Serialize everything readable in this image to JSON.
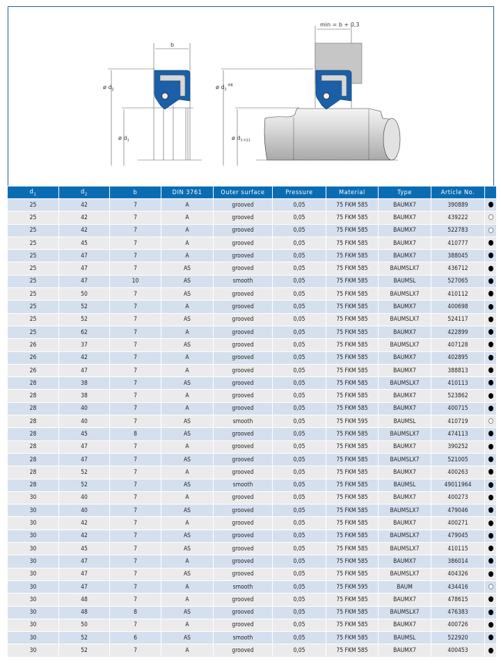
{
  "drawing": {
    "label_b": "b",
    "label_d2": "ø d",
    "label_d2_sub": "2",
    "label_d1": "ø d",
    "label_d1_sub": "1",
    "label_d2_right": "ø d",
    "label_d2_right_sub": "2",
    "label_d2_tol": "H8",
    "label_d1_right": "ø d",
    "label_d1_right_sub": "1 h11",
    "label_min": "min = b + 0,3",
    "seal_color": "#1a5fa8"
  },
  "table": {
    "headers": [
      "d",
      "d",
      "b",
      "DIN 3761",
      "Outer surface",
      "Pressure",
      "Material",
      "Type",
      "Article No.",
      ""
    ],
    "header_subs": [
      "1",
      "2"
    ],
    "header_color": "#0a6db3",
    "row_colors": [
      "#d5e0ee",
      "#ebebeb"
    ],
    "rows": [
      [
        "25",
        "42",
        "7",
        "A",
        "grooved",
        "0,05",
        "75 FKM 585",
        "BAUMX7",
        "390889",
        "filled"
      ],
      [
        "25",
        "42",
        "7",
        "A",
        "grooved",
        "0,05",
        "75 FKM 585",
        "BAUMX7",
        "439222",
        "open"
      ],
      [
        "25",
        "42",
        "7",
        "A",
        "grooved",
        "0,05",
        "75 FKM 585",
        "BAUMX7",
        "522783",
        "open"
      ],
      [
        "25",
        "45",
        "7",
        "A",
        "grooved",
        "0,05",
        "75 FKM 585",
        "BAUMX7",
        "410777",
        "filled"
      ],
      [
        "25",
        "47",
        "7",
        "A",
        "grooved",
        "0,05",
        "75 FKM 585",
        "BAUMX7",
        "388045",
        "filled"
      ],
      [
        "25",
        "47",
        "7",
        "AS",
        "grooved",
        "0,05",
        "75 FKM 585",
        "BAUMSLX7",
        "436712",
        "filled"
      ],
      [
        "25",
        "47",
        "10",
        "AS",
        "smooth",
        "0,05",
        "75 FKM 585",
        "BAUMSL",
        "527065",
        "filled"
      ],
      [
        "25",
        "50",
        "7",
        "AS",
        "grooved",
        "0,05",
        "75 FKM 585",
        "BAUMSLX7",
        "410112",
        "filled"
      ],
      [
        "25",
        "52",
        "7",
        "A",
        "grooved",
        "0,05",
        "75 FKM 585",
        "BAUMX7",
        "400698",
        "filled"
      ],
      [
        "25",
        "52",
        "7",
        "AS",
        "grooved",
        "0,05",
        "75 FKM 585",
        "BAUMSLX7",
        "524117",
        "filled"
      ],
      [
        "25",
        "62",
        "7",
        "A",
        "grooved",
        "0,05",
        "75 FKM 585",
        "BAUMX7",
        "422899",
        "filled"
      ],
      [
        "26",
        "37",
        "7",
        "AS",
        "grooved",
        "0,05",
        "75 FKM 585",
        "BAUMSLX7",
        "407128",
        "filled"
      ],
      [
        "26",
        "42",
        "7",
        "A",
        "grooved",
        "0,05",
        "75 FKM 585",
        "BAUMX7",
        "402895",
        "filled"
      ],
      [
        "26",
        "47",
        "7",
        "A",
        "grooved",
        "0,05",
        "75 FKM 585",
        "BAUMX7",
        "388813",
        "filled"
      ],
      [
        "28",
        "38",
        "7",
        "AS",
        "grooved",
        "0,05",
        "75 FKM 585",
        "BAUMSLX7",
        "410113",
        "filled"
      ],
      [
        "28",
        "38",
        "7",
        "A",
        "grooved",
        "0,05",
        "75 FKM 585",
        "BAUMX7",
        "523862",
        "filled"
      ],
      [
        "28",
        "40",
        "7",
        "A",
        "grooved",
        "0,05",
        "75 FKM 585",
        "BAUMX7",
        "400715",
        "filled"
      ],
      [
        "28",
        "40",
        "7",
        "AS",
        "smooth",
        "0,05",
        "75 FKM 595",
        "BAUMSL",
        "410719",
        "open"
      ],
      [
        "28",
        "45",
        "8",
        "AS",
        "grooved",
        "0,05",
        "75 FKM 585",
        "BAUMSLX7",
        "474113",
        "filled"
      ],
      [
        "28",
        "47",
        "7",
        "A",
        "grooved",
        "0,05",
        "75 FKM 585",
        "BAUMX7",
        "390252",
        "filled"
      ],
      [
        "28",
        "47",
        "7",
        "AS",
        "grooved",
        "0,05",
        "75 FKM 585",
        "BAUMSLX7",
        "521005",
        "filled"
      ],
      [
        "28",
        "52",
        "7",
        "A",
        "grooved",
        "0,05",
        "75 FKM 585",
        "BAUMX7",
        "400263",
        "filled"
      ],
      [
        "28",
        "52",
        "7",
        "AS",
        "smooth",
        "0,05",
        "75 FKM 585",
        "BAUMSL",
        "49011964",
        "filled"
      ],
      [
        "30",
        "40",
        "7",
        "A",
        "grooved",
        "0,05",
        "75 FKM 585",
        "BAUMX7",
        "400273",
        "filled"
      ],
      [
        "30",
        "40",
        "7",
        "AS",
        "grooved",
        "0,05",
        "75 FKM 585",
        "BAUMSLX7",
        "479046",
        "filled"
      ],
      [
        "30",
        "42",
        "7",
        "A",
        "grooved",
        "0,05",
        "75 FKM 585",
        "BAUMX7",
        "400271",
        "filled"
      ],
      [
        "30",
        "42",
        "7",
        "AS",
        "grooved",
        "0,05",
        "75 FKM 585",
        "BAUMSLX7",
        "479045",
        "filled"
      ],
      [
        "30",
        "45",
        "7",
        "AS",
        "grooved",
        "0,05",
        "75 FKM 585",
        "BAUMSLX7",
        "410115",
        "filled"
      ],
      [
        "30",
        "47",
        "7",
        "A",
        "grooved",
        "0,05",
        "75 FKM 585",
        "BAUMX7",
        "386014",
        "filled"
      ],
      [
        "30",
        "47",
        "7",
        "AS",
        "grooved",
        "0,05",
        "75 FKM 585",
        "BAUMSLX7",
        "404326",
        "filled"
      ],
      [
        "30",
        "47",
        "7",
        "A",
        "smooth",
        "0,05",
        "75 FKM 595",
        "BAUM",
        "434416",
        "open"
      ],
      [
        "30",
        "48",
        "7",
        "A",
        "grooved",
        "0,05",
        "75 FKM 585",
        "BAUMX7",
        "478615",
        "filled"
      ],
      [
        "30",
        "48",
        "8",
        "AS",
        "grooved",
        "0,05",
        "75 FKM 585",
        "BAUMSLX7",
        "476383",
        "filled"
      ],
      [
        "30",
        "50",
        "7",
        "A",
        "grooved",
        "0,05",
        "75 FKM 585",
        "BAUMX7",
        "400726",
        "filled"
      ],
      [
        "30",
        "52",
        "6",
        "AS",
        "smooth",
        "0,05",
        "75 FKM 585",
        "BAUMSL",
        "522920",
        "filled"
      ],
      [
        "30",
        "52",
        "7",
        "A",
        "grooved",
        "0,05",
        "75 FKM 585",
        "BAUMX7",
        "400453",
        "filled"
      ]
    ]
  }
}
